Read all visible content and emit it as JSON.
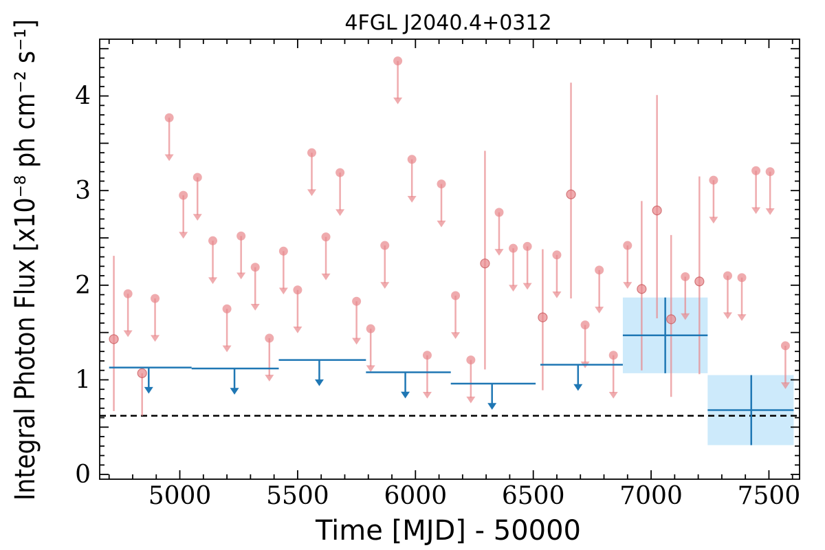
{
  "chart_data": {
    "type": "scatter",
    "title": "4FGL J2040.4+0312",
    "xlabel": "Time [MJD] - 50000",
    "ylabel": "Integral Photon Flux [x10⁻⁸ ph cm⁻² s⁻¹]",
    "xlim": [
      4660,
      7630
    ],
    "ylim": [
      -0.05,
      4.6
    ],
    "xticks": [
      5000,
      5500,
      6000,
      6500,
      7000,
      7500
    ],
    "yticks": [
      0,
      1,
      2,
      3,
      4
    ],
    "grid": false,
    "colors": {
      "short_bins": "#e8878c",
      "long_bins": "#1f77b4",
      "long_bins_band": "#cdeafb",
      "reference_line": "#000000"
    },
    "reference_line_y": 0.62,
    "short_bin_upper_limits": [
      {
        "x": 4780,
        "y": 1.91
      },
      {
        "x": 4895,
        "y": 1.86
      },
      {
        "x": 4955,
        "y": 3.77
      },
      {
        "x": 5015,
        "y": 2.95
      },
      {
        "x": 5075,
        "y": 3.14
      },
      {
        "x": 5140,
        "y": 2.47
      },
      {
        "x": 5200,
        "y": 1.75
      },
      {
        "x": 5260,
        "y": 2.52
      },
      {
        "x": 5320,
        "y": 2.19
      },
      {
        "x": 5380,
        "y": 1.44
      },
      {
        "x": 5440,
        "y": 2.36
      },
      {
        "x": 5500,
        "y": 1.95
      },
      {
        "x": 5560,
        "y": 3.4
      },
      {
        "x": 5620,
        "y": 2.51
      },
      {
        "x": 5680,
        "y": 3.19
      },
      {
        "x": 5750,
        "y": 1.83
      },
      {
        "x": 5810,
        "y": 1.54
      },
      {
        "x": 5870,
        "y": 2.42
      },
      {
        "x": 5925,
        "y": 4.37
      },
      {
        "x": 5985,
        "y": 3.33
      },
      {
        "x": 6050,
        "y": 1.26
      },
      {
        "x": 6110,
        "y": 3.07
      },
      {
        "x": 6170,
        "y": 1.89
      },
      {
        "x": 6235,
        "y": 1.21
      },
      {
        "x": 6355,
        "y": 2.77
      },
      {
        "x": 6415,
        "y": 2.39
      },
      {
        "x": 6475,
        "y": 2.41
      },
      {
        "x": 6600,
        "y": 2.32
      },
      {
        "x": 6720,
        "y": 1.58
      },
      {
        "x": 6780,
        "y": 2.16
      },
      {
        "x": 6840,
        "y": 1.26
      },
      {
        "x": 6900,
        "y": 2.42
      },
      {
        "x": 7145,
        "y": 2.09
      },
      {
        "x": 7265,
        "y": 3.11
      },
      {
        "x": 7325,
        "y": 2.1
      },
      {
        "x": 7385,
        "y": 2.08
      },
      {
        "x": 7445,
        "y": 3.21
      },
      {
        "x": 7505,
        "y": 3.2
      },
      {
        "x": 7570,
        "y": 1.36
      }
    ],
    "short_bin_detections": [
      {
        "x": 4720,
        "y": 1.43,
        "ylo": 0.67,
        "yhi": 2.31
      },
      {
        "x": 4840,
        "y": 1.07,
        "ylo": 0.62,
        "yhi": 1.07
      },
      {
        "x": 6295,
        "y": 2.23,
        "ylo": 1.11,
        "yhi": 3.42
      },
      {
        "x": 6540,
        "y": 1.66,
        "ylo": 0.89,
        "yhi": 2.38
      },
      {
        "x": 6660,
        "y": 2.96,
        "ylo": 1.86,
        "yhi": 4.14
      },
      {
        "x": 6960,
        "y": 1.96,
        "ylo": 1.1,
        "yhi": 2.89
      },
      {
        "x": 7025,
        "y": 2.79,
        "ylo": 1.65,
        "yhi": 4.01
      },
      {
        "x": 7085,
        "y": 1.64,
        "ylo": 0.82,
        "yhi": 2.53
      },
      {
        "x": 7205,
        "y": 2.04,
        "ylo": 1.06,
        "yhi": 3.15
      }
    ],
    "long_bin_upper_limits": [
      {
        "x0": 4700,
        "x1": 5050,
        "y": 1.13,
        "arrow_x": 4868
      },
      {
        "x0": 5050,
        "x1": 5420,
        "y": 1.12,
        "arrow_x": 5232
      },
      {
        "x0": 5420,
        "x1": 5790,
        "y": 1.21,
        "arrow_x": 5592
      },
      {
        "x0": 5790,
        "x1": 6150,
        "y": 1.08,
        "arrow_x": 5957
      },
      {
        "x0": 6150,
        "x1": 6510,
        "y": 0.96,
        "arrow_x": 6325
      },
      {
        "x0": 6530,
        "x1": 6880,
        "y": 1.16,
        "arrow_x": 6690
      }
    ],
    "long_bin_detections": [
      {
        "x": 7060,
        "x0": 6880,
        "x1": 7240,
        "y": 1.47,
        "ylo": 1.07,
        "yhi": 1.87
      },
      {
        "x": 7425,
        "x0": 7240,
        "x1": 7605,
        "y": 0.68,
        "ylo": 0.31,
        "yhi": 1.05
      }
    ]
  }
}
